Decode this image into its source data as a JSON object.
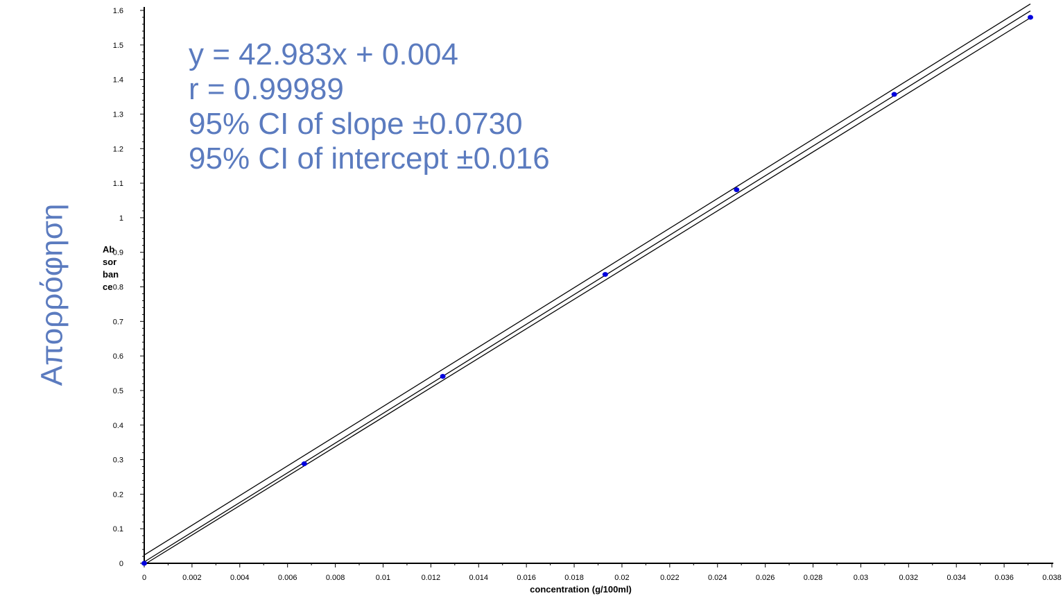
{
  "chart_data": {
    "type": "scatter",
    "xlabel": "concentration (g/100ml)",
    "ylabel": "Ab sor ban ce",
    "ylabel_lines": [
      "Ab",
      "sor",
      "ban",
      "ce"
    ],
    "side_label": "Απορρόφηση",
    "xlim": [
      0,
      0.038
    ],
    "ylim": [
      0,
      1.6
    ],
    "x_ticks": [
      0,
      0.002,
      0.004,
      0.006,
      0.008,
      0.01,
      0.012,
      0.014,
      0.016,
      0.018,
      0.02,
      0.022,
      0.024,
      0.026,
      0.028,
      0.03,
      0.032,
      0.034,
      0.036,
      0.038
    ],
    "x_tick_labels": [
      "0",
      "0.002",
      "0.004",
      "0.006",
      "0.008",
      "0.01",
      "0.012",
      "0.014",
      "0.016",
      "0.018",
      "0.02",
      "0.022",
      "0.024",
      "0.026",
      "0.028",
      "0.03",
      "0.032",
      "0.034",
      "0.036",
      "0.038"
    ],
    "y_ticks": [
      0,
      0.1,
      0.2,
      0.3,
      0.4,
      0.5,
      0.6,
      0.7,
      0.8,
      0.9,
      1,
      1.1,
      1.2,
      1.3,
      1.4,
      1.5,
      1.6
    ],
    "y_tick_labels": [
      "0",
      "0.1",
      "0.2",
      "0.3",
      "0.4",
      "0.5",
      "0.6",
      "0.7",
      "0.8",
      "0.9",
      "1",
      "1.1",
      "1.2",
      "1.3",
      "1.4",
      "1.5",
      "1.6"
    ],
    "points": [
      {
        "x": 0.0,
        "y": 0.0
      },
      {
        "x": 0.0067,
        "y": 0.288
      },
      {
        "x": 0.0125,
        "y": 0.541
      },
      {
        "x": 0.0193,
        "y": 0.836
      },
      {
        "x": 0.0248,
        "y": 1.081
      },
      {
        "x": 0.0314,
        "y": 1.357
      },
      {
        "x": 0.0371,
        "y": 1.58
      }
    ],
    "fit": {
      "slope": 42.983,
      "intercept": 0.004,
      "x_range": [
        0,
        0.0371
      ]
    },
    "ci_band_halfwidth": 0.02,
    "annotations": [
      "y = 42.983x + 0.004",
      "r = 0.99989",
      "95% CI of slope ±0.0730",
      "95% CI of intercept ±0.016"
    ],
    "colors": {
      "points": "#0000dd",
      "lines": "#000000",
      "annotation": "#5b7bbf"
    },
    "grid": false
  }
}
